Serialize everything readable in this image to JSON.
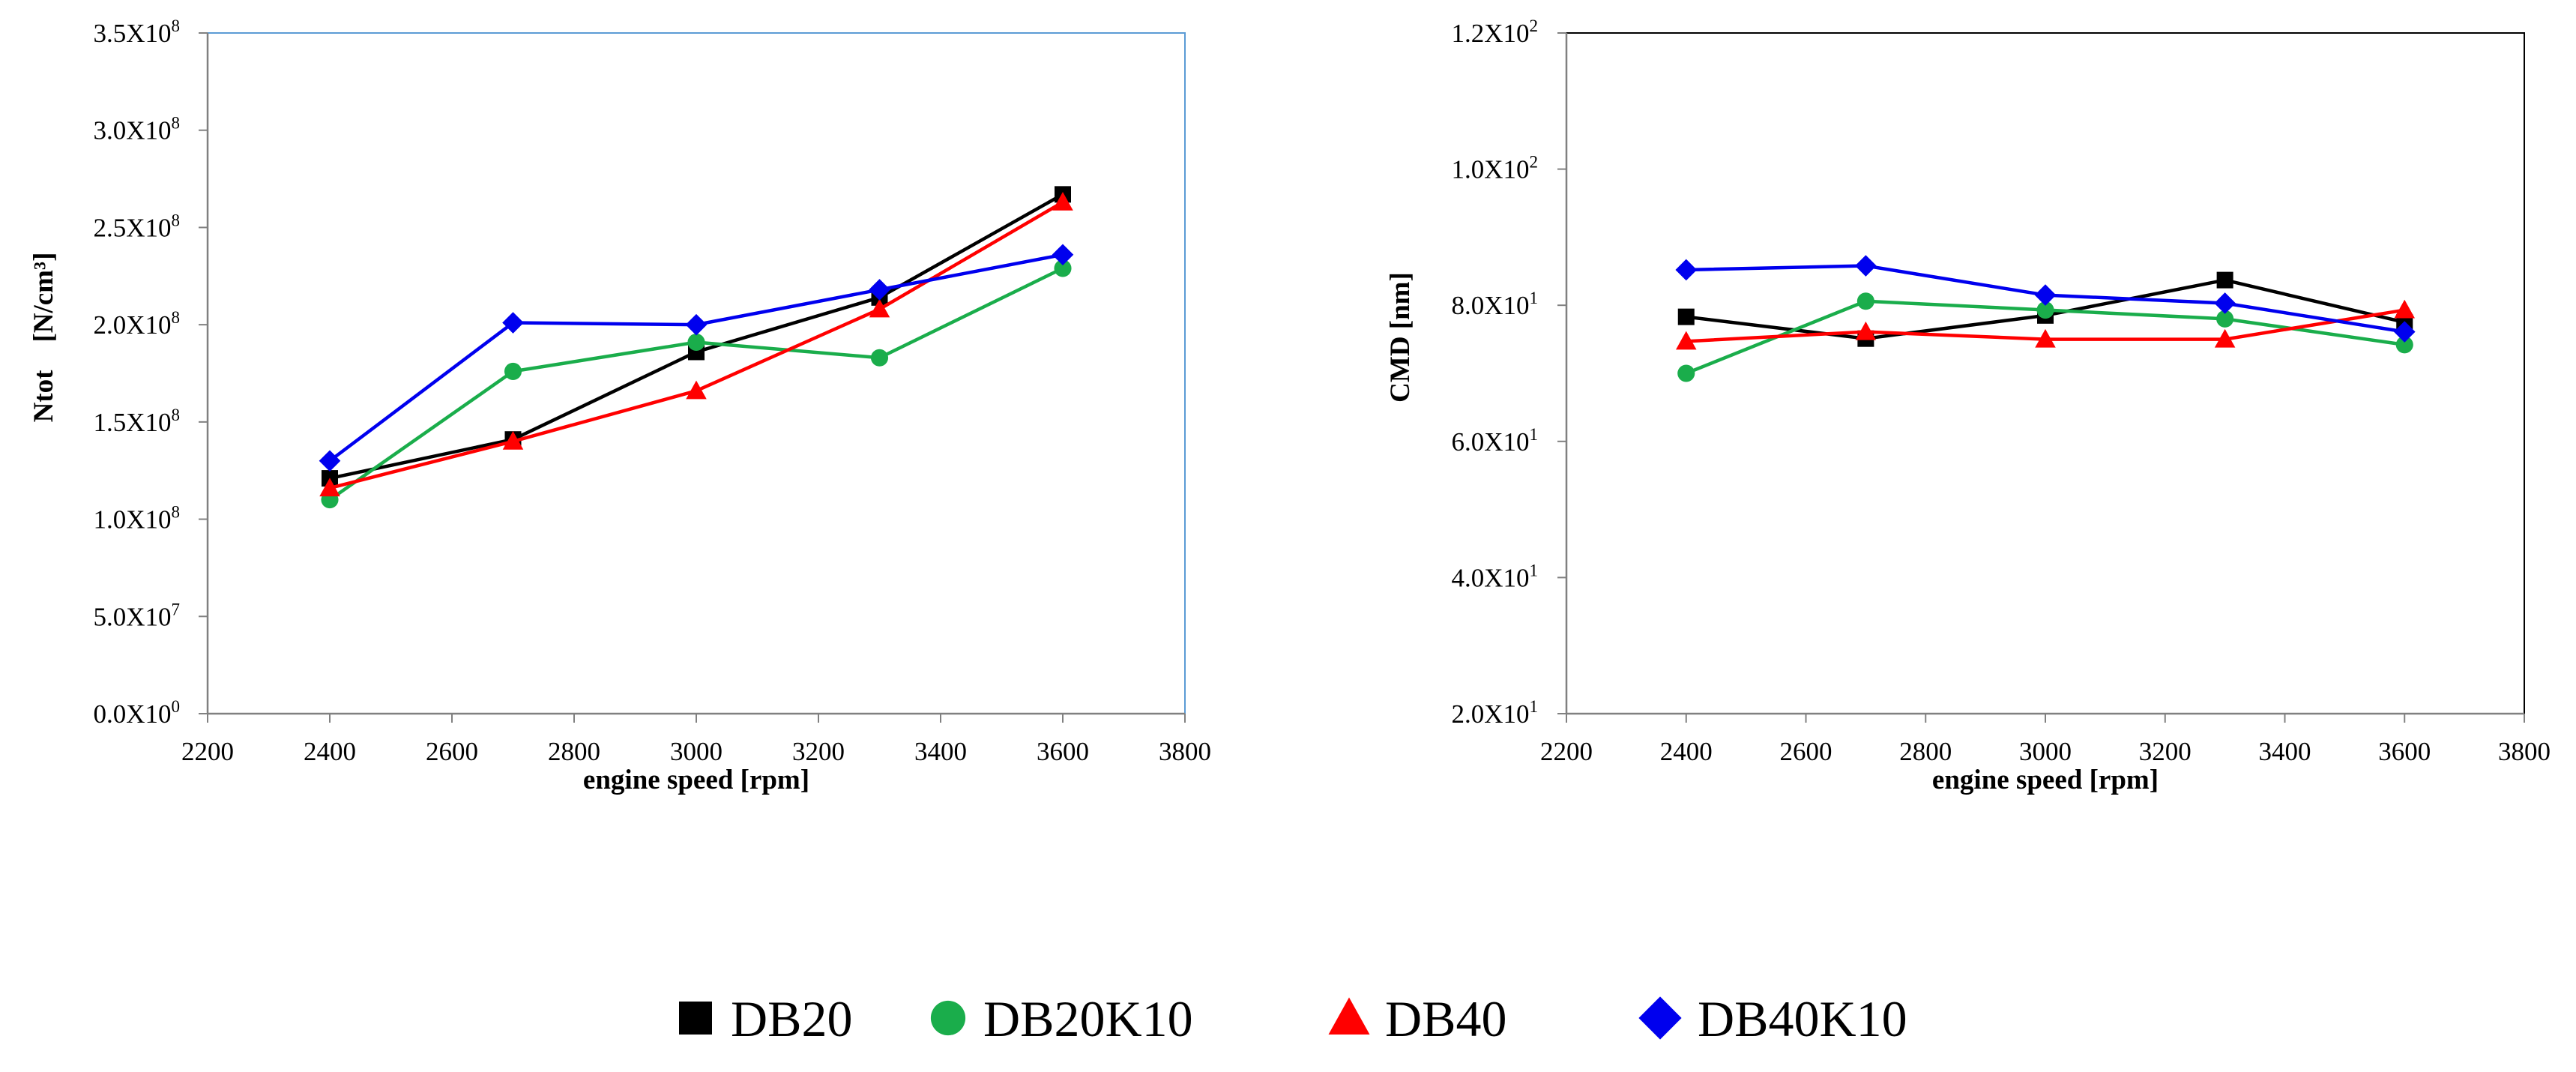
{
  "chart_data": [
    {
      "type": "line",
      "xlabel": "engine speed [rpm]",
      "ylabel": "Ntot    [N/cm³]",
      "xlim": [
        2200,
        3800
      ],
      "ylim": [
        0,
        350000000
      ],
      "x_ticks": [
        2200,
        2400,
        2600,
        2800,
        3000,
        3200,
        3400,
        3600,
        3800
      ],
      "x_tick_labels": [
        "2200",
        "2400",
        "2600",
        "2800",
        "3000",
        "3200",
        "3400",
        "3600",
        "3800"
      ],
      "y_ticks": [
        0,
        50000000,
        100000000,
        150000000,
        200000000,
        250000000,
        300000000,
        350000000
      ],
      "y_tick_labels": [
        {
          "mantissa": "0.0X10",
          "exp": "0"
        },
        {
          "mantissa": "5.0X10",
          "exp": "7"
        },
        {
          "mantissa": "1.0X10",
          "exp": "8"
        },
        {
          "mantissa": "1.5X10",
          "exp": "8"
        },
        {
          "mantissa": "2.0X10",
          "exp": "8"
        },
        {
          "mantissa": "2.5X10",
          "exp": "8"
        },
        {
          "mantissa": "3.0X10",
          "exp": "8"
        },
        {
          "mantissa": "3.5X10",
          "exp": "8"
        }
      ],
      "grid": false,
      "series": [
        {
          "name": "DB20",
          "x": [
            2400,
            2700,
            3000,
            3300,
            3600
          ],
          "values": [
            121000000,
            141000000,
            186000000,
            214000000,
            267000000
          ]
        },
        {
          "name": "DB20K10",
          "x": [
            2400,
            2700,
            3000,
            3300,
            3600
          ],
          "values": [
            110000000,
            176000000,
            191000000,
            183000000,
            229000000
          ]
        },
        {
          "name": "DB40",
          "x": [
            2400,
            2700,
            3000,
            3300,
            3600
          ],
          "values": [
            116000000,
            140000000,
            166000000,
            208000000,
            263000000
          ]
        },
        {
          "name": "DB40K10",
          "x": [
            2400,
            2700,
            3000,
            3300,
            3600
          ],
          "values": [
            130000000,
            201000000,
            200000000,
            218000000,
            236000000
          ]
        }
      ]
    },
    {
      "type": "line",
      "xlabel": "engine speed [rpm]",
      "ylabel": "CMD [nm]",
      "xlim": [
        2200,
        3800
      ],
      "ylim": [
        20,
        120
      ],
      "x_ticks": [
        2200,
        2400,
        2600,
        2800,
        3000,
        3200,
        3400,
        3600,
        3800
      ],
      "x_tick_labels": [
        "2200",
        "2400",
        "2600",
        "2800",
        "3000",
        "3200",
        "3400",
        "3600",
        "3800"
      ],
      "y_ticks": [
        20,
        40,
        60,
        80,
        100,
        120
      ],
      "y_tick_labels": [
        {
          "mantissa": "2.0X10",
          "exp": "1"
        },
        {
          "mantissa": "4.0X10",
          "exp": "1"
        },
        {
          "mantissa": "6.0X10",
          "exp": "1"
        },
        {
          "mantissa": "8.0X10",
          "exp": "1"
        },
        {
          "mantissa": "1.0X10",
          "exp": "2"
        },
        {
          "mantissa": "1.2X10",
          "exp": "2"
        }
      ],
      "grid": false,
      "series": [
        {
          "name": "DB20",
          "x": [
            2400,
            2700,
            3000,
            3300,
            3600
          ],
          "values": [
            78.3,
            75.1,
            78.5,
            83.7,
            77.5
          ]
        },
        {
          "name": "DB20K10",
          "x": [
            2400,
            2700,
            3000,
            3300,
            3600
          ],
          "values": [
            70.0,
            80.6,
            79.3,
            78.0,
            74.2
          ]
        },
        {
          "name": "DB40",
          "x": [
            2400,
            2700,
            3000,
            3300,
            3600
          ],
          "values": [
            74.7,
            76.1,
            75.0,
            75.0,
            79.3
          ]
        },
        {
          "name": "DB40K10",
          "x": [
            2400,
            2700,
            3000,
            3300,
            3600
          ],
          "values": [
            85.2,
            85.8,
            81.5,
            80.3,
            76.1
          ]
        }
      ]
    }
  ],
  "legend": {
    "position": "bottom-center",
    "entries": [
      {
        "name": "DB20",
        "marker": "square",
        "color": "#000000"
      },
      {
        "name": "DB20K10",
        "marker": "circle",
        "color": "#1aad4b"
      },
      {
        "name": "DB40",
        "marker": "triangle",
        "color": "#ff0000"
      },
      {
        "name": "DB40K10",
        "marker": "diamond",
        "color": "#0000ee"
      }
    ]
  },
  "colors": {
    "DB20": "#000000",
    "DB20K10": "#1aad4b",
    "DB40": "#ff0000",
    "DB40K10": "#0000ee",
    "left_frame": "#5b9bd5",
    "right_frame": "#000000",
    "axis": "#808080"
  }
}
